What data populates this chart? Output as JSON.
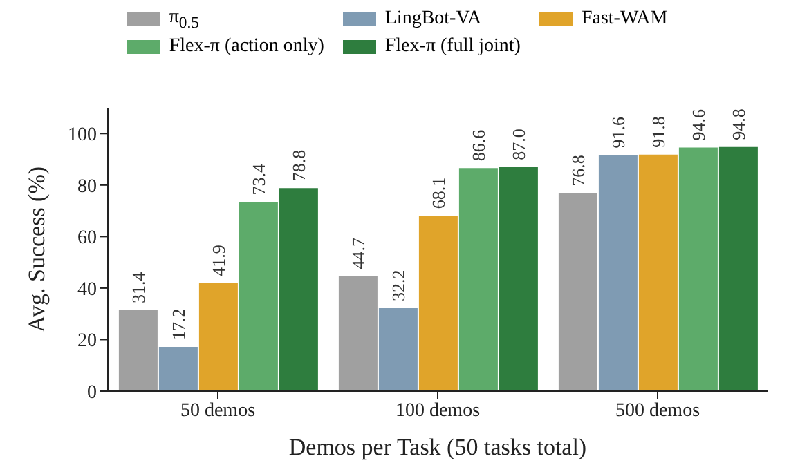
{
  "chart_data": {
    "type": "bar",
    "xlabel": "Demos per Task  (50 tasks total)",
    "ylabel": "Avg. Success (%)",
    "categories": [
      "50 demos",
      "100 demos",
      "500 demos"
    ],
    "series": [
      {
        "name": "π$_{0.5}$",
        "color": "#a0a0a0",
        "values": [
          31.4,
          44.7,
          76.8
        ],
        "value_labels": [
          "31.4",
          "44.7",
          "76.8"
        ]
      },
      {
        "name": "LingBot-VA",
        "color": "#7f9bb3",
        "values": [
          17.2,
          32.2,
          91.6
        ],
        "value_labels": [
          "17.2",
          "32.2",
          "91.6"
        ]
      },
      {
        "name": "Fast-WAM",
        "color": "#e0a42a",
        "values": [
          41.9,
          68.1,
          91.8
        ],
        "value_labels": [
          "41.9",
          "68.1",
          "91.8"
        ]
      },
      {
        "name": "Flex-π (action only)",
        "color": "#5dab6a",
        "values": [
          73.4,
          86.6,
          94.6
        ],
        "value_labels": [
          "73.4",
          "86.6",
          "94.6"
        ]
      },
      {
        "name": "Flex-π (full joint)",
        "color": "#2e7d3e",
        "values": [
          78.8,
          87.0,
          94.8
        ],
        "value_labels": [
          "78.8",
          "87.0",
          "94.8"
        ]
      }
    ],
    "ylim": [
      0,
      110
    ],
    "yticks": [
      0,
      20,
      40,
      60,
      80,
      100
    ],
    "legend": "top"
  }
}
